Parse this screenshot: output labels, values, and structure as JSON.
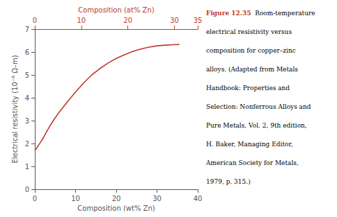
{
  "chart_data": {
    "type": "line",
    "xlabel": "Composition (wt% Zn)",
    "x2label": "Composition (at% Zn)",
    "ylabel": "Electrical resistivity (10⁻⁸ Ω–m)",
    "x": [
      0,
      0.5,
      1,
      1.5,
      2,
      3,
      4,
      5,
      6,
      7,
      8,
      9,
      10,
      12,
      14,
      16,
      18,
      20,
      22,
      24,
      26,
      28,
      30,
      32,
      34,
      35.5
    ],
    "values": [
      1.7,
      1.82,
      1.95,
      2.08,
      2.22,
      2.55,
      2.85,
      3.12,
      3.37,
      3.6,
      3.82,
      4.04,
      4.25,
      4.65,
      5.0,
      5.28,
      5.52,
      5.72,
      5.88,
      6.02,
      6.13,
      6.21,
      6.27,
      6.3,
      6.32,
      6.33
    ],
    "color": "#c0392b",
    "xlim": [
      0,
      40
    ],
    "xticks": [
      0,
      10,
      20,
      30,
      40
    ],
    "x2lim": [
      0,
      35
    ],
    "x2ticks": [
      0,
      10,
      20,
      30
    ],
    "ylim": [
      0,
      7
    ],
    "yticks": [
      0,
      1,
      2,
      3,
      4,
      5,
      6,
      7
    ],
    "grid": false,
    "caption_label": "Figure 12.35",
    "annotations": [
      "  Room-temperature",
      "electrical resistivity versus",
      "composition for copper–zinc",
      "alloys. (Adapted from Metals",
      "Handbook: Properties and",
      "Selection: Nonferrous Alloys and",
      "Pure Metals, Vol. 2, 9th edition,",
      "H. Baker, Managing Editor,",
      "American Society for Metals,",
      "1979, p. 315.)"
    ]
  }
}
